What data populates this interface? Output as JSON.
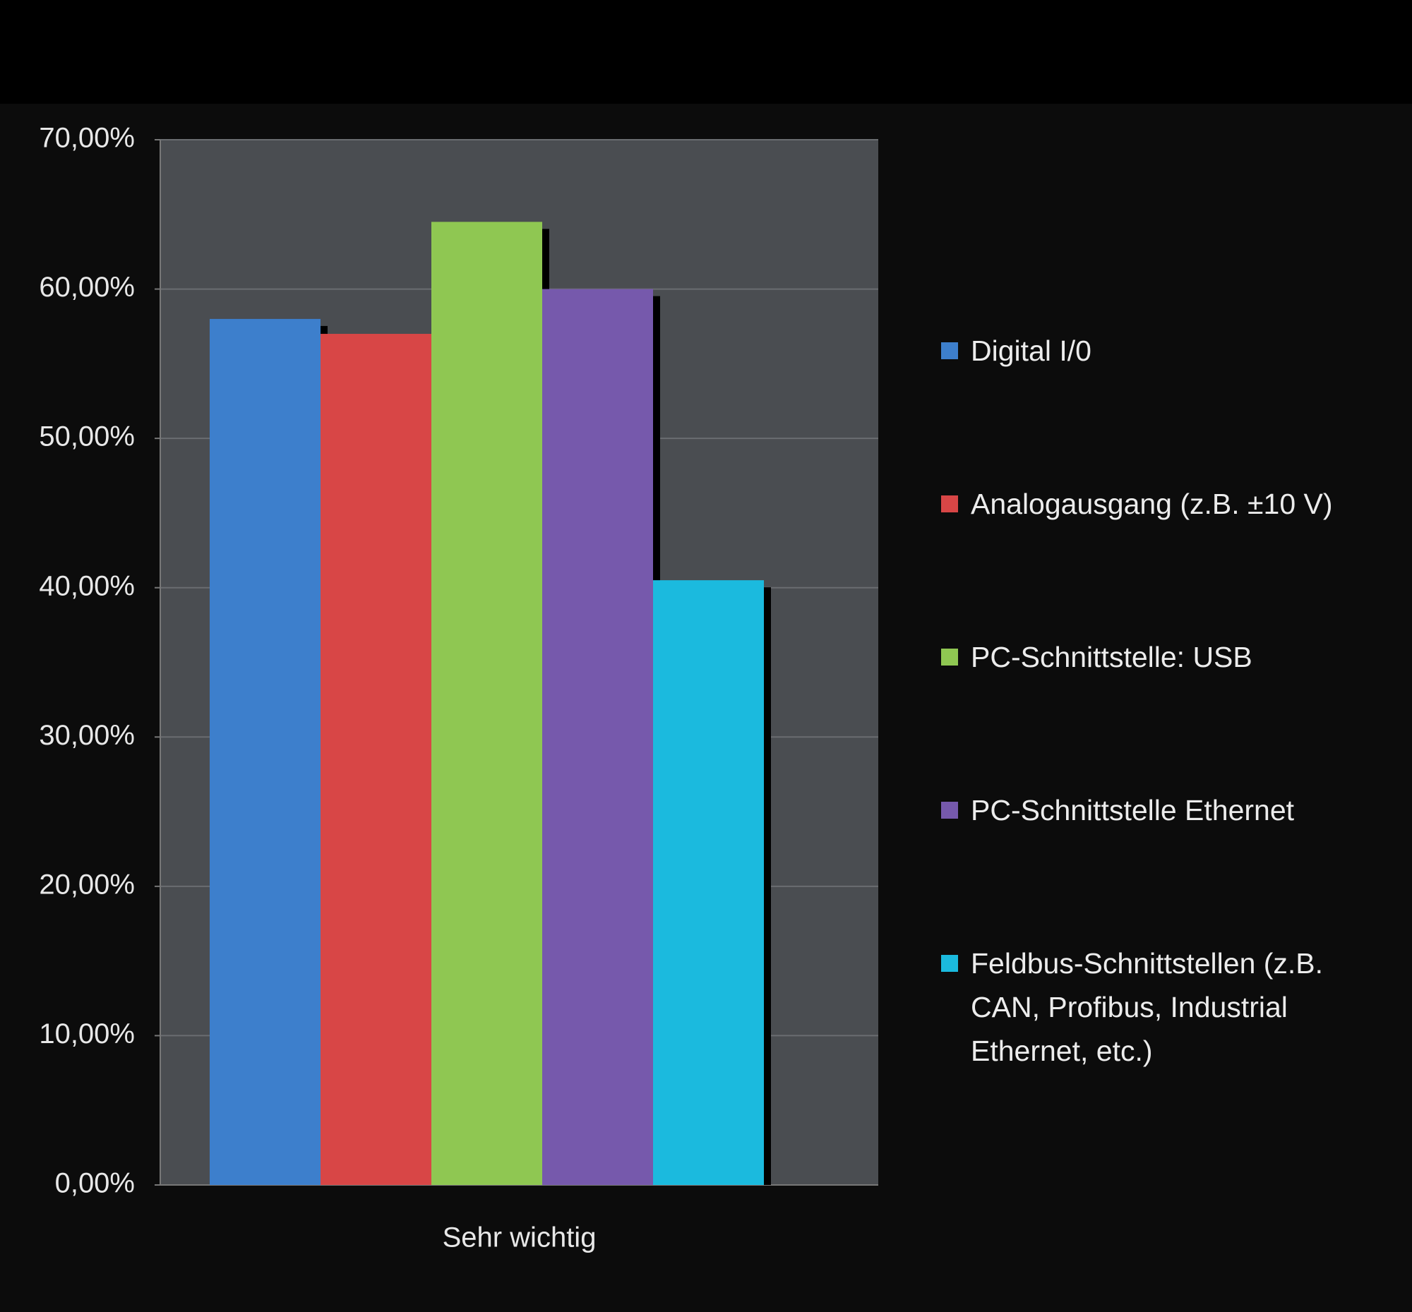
{
  "chart_data": {
    "type": "bar",
    "categories": [
      "Sehr wichtig"
    ],
    "series": [
      {
        "name": "Digital I/0",
        "color": "#3d7fcc",
        "values": [
          58
        ]
      },
      {
        "name": "Analogausgang (z.B. ±10 V)",
        "color": "#d84646",
        "values": [
          57
        ]
      },
      {
        "name": "PC-Schnittstelle: USB",
        "color": "#8fc752",
        "values": [
          64.5
        ]
      },
      {
        "name": "PC-Schnittstelle Ethernet",
        "color": "#7659ac",
        "values": [
          60
        ]
      },
      {
        "name": "Feldbus-Schnittstellen (z.B. CAN, Profibus, Industrial Ethernet, etc.)",
        "color": "#1bbade",
        "values": [
          40.5
        ]
      }
    ],
    "ylim": [
      0,
      70
    ],
    "yticks": [
      {
        "value": 0,
        "label": "0,00%"
      },
      {
        "value": 10,
        "label": "10,00%"
      },
      {
        "value": 20,
        "label": "20,00%"
      },
      {
        "value": 30,
        "label": "30,00%"
      },
      {
        "value": 40,
        "label": "40,00%"
      },
      {
        "value": 50,
        "label": "50,00%"
      },
      {
        "value": 60,
        "label": "60,00%"
      },
      {
        "value": 70,
        "label": "70,00%"
      }
    ],
    "grid": true
  }
}
